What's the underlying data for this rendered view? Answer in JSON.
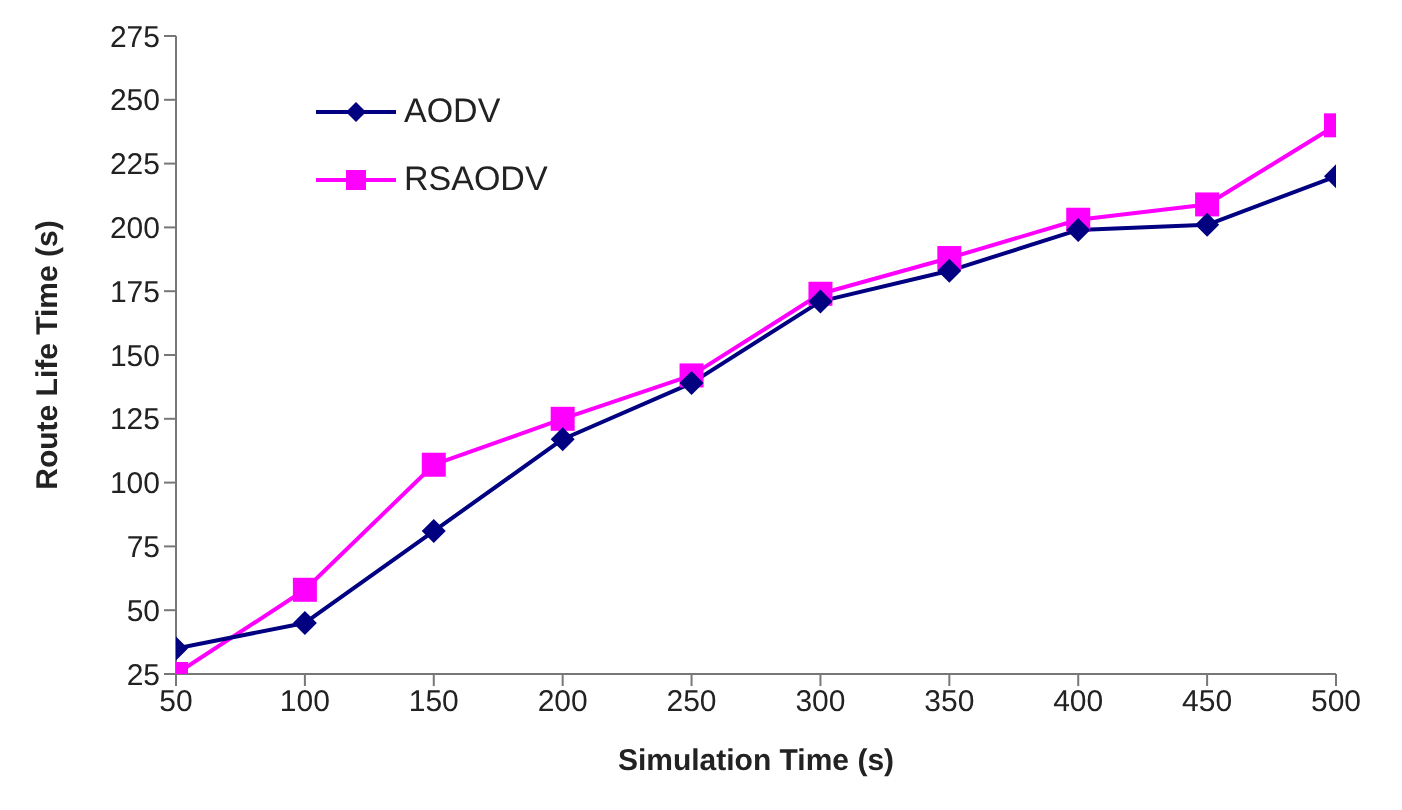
{
  "chart_data": {
    "type": "line",
    "xlabel": "Simulation Time (s)",
    "ylabel": "Route Life Time (s)",
    "x": [
      50,
      100,
      150,
      200,
      250,
      300,
      350,
      400,
      450,
      500
    ],
    "series": [
      {
        "name": "AODV",
        "color": "#000080",
        "marker": "diamond",
        "values": [
          35,
          45,
          81,
          117,
          139,
          171,
          183,
          199,
          201,
          220
        ]
      },
      {
        "name": "RSAODV",
        "color": "#ff00ff",
        "marker": "square",
        "values": [
          25,
          58,
          107,
          125,
          142,
          174,
          188,
          203,
          209,
          240
        ]
      }
    ],
    "xlim": [
      50,
      500
    ],
    "xticks": [
      50,
      100,
      150,
      200,
      250,
      300,
      350,
      400,
      450,
      500
    ],
    "ylim": [
      25,
      275
    ],
    "yticks": [
      25,
      50,
      75,
      100,
      125,
      150,
      175,
      200,
      225,
      250,
      275
    ],
    "grid": false,
    "legend": "top left"
  }
}
